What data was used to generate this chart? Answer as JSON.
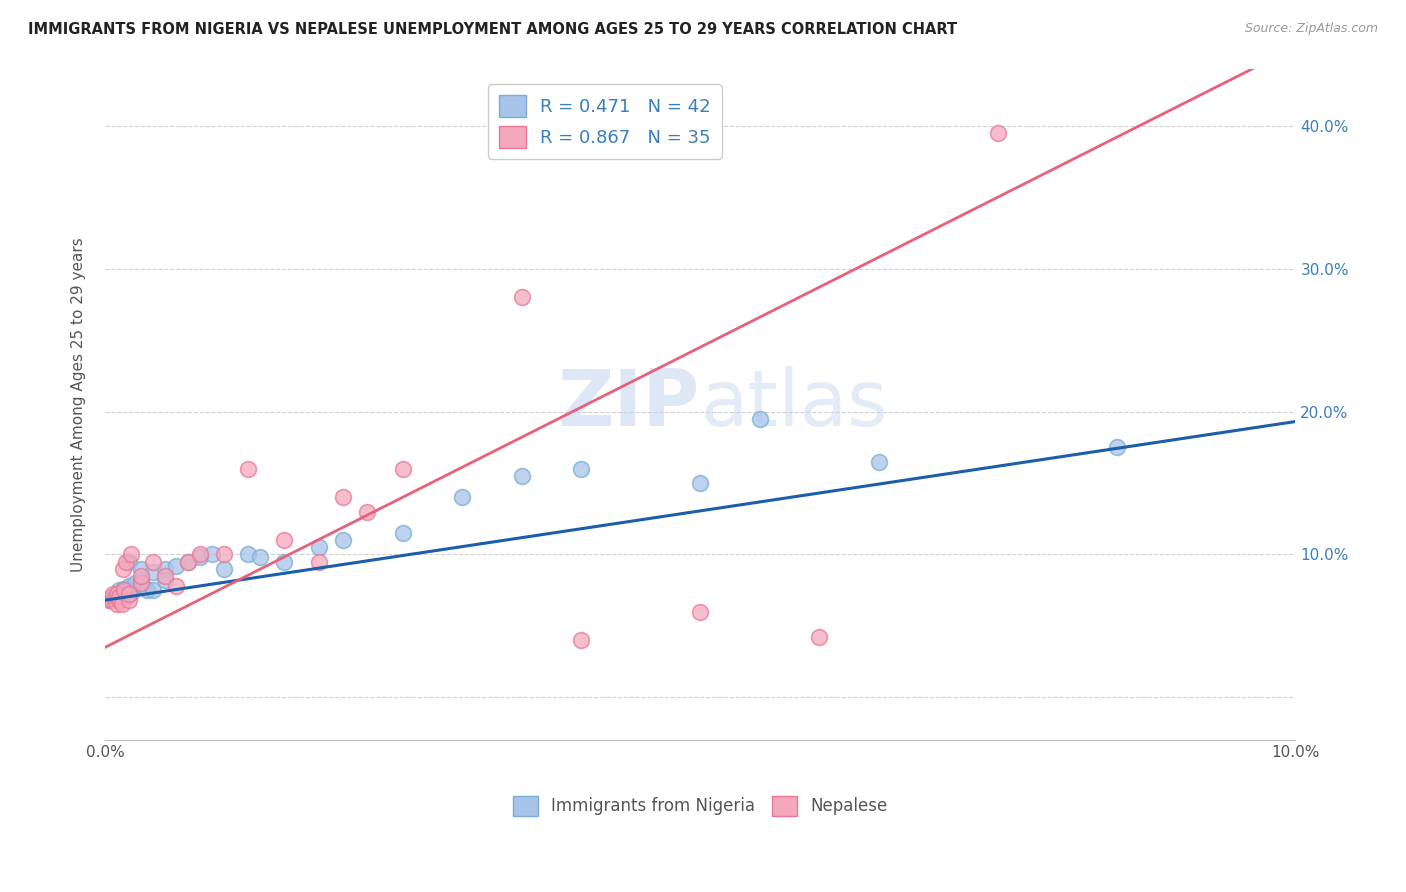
{
  "title": "IMMIGRANTS FROM NIGERIA VS NEPALESE UNEMPLOYMENT AMONG AGES 25 TO 29 YEARS CORRELATION CHART",
  "source": "Source: ZipAtlas.com",
  "ylabel": "Unemployment Among Ages 25 to 29 years",
  "xlim": [
    0.0,
    0.1
  ],
  "ylim": [
    -0.03,
    0.44
  ],
  "yticks": [
    0.0,
    0.1,
    0.2,
    0.3,
    0.4
  ],
  "xticks": [
    0.0,
    0.1
  ],
  "xtick_labels_positions": [
    0.0,
    0.1
  ],
  "xtick_labels": [
    "0.0%",
    "10.0%"
  ],
  "ytick_labels_right": [
    "",
    "10.0%",
    "20.0%",
    "30.0%",
    "40.0%"
  ],
  "legend_label1": "Immigrants from Nigeria",
  "legend_label2": "Nepalese",
  "nigeria_color": "#a8c4e8",
  "nepalese_color": "#f4a8bc",
  "nigeria_edge_color": "#7aadd4",
  "nepalese_edge_color": "#e87898",
  "nigeria_line_color": "#1a5fa8",
  "nepalese_line_color": "#e8607a",
  "nigeria_slope": 1.25,
  "nigeria_intercept": 0.068,
  "nepalese_slope": 4.2,
  "nepalese_intercept": 0.035,
  "nigeria_x": [
    0.0005,
    0.0008,
    0.001,
    0.001,
    0.0012,
    0.0012,
    0.0014,
    0.0015,
    0.0015,
    0.0016,
    0.0018,
    0.002,
    0.002,
    0.002,
    0.0022,
    0.0025,
    0.003,
    0.003,
    0.0032,
    0.0035,
    0.004,
    0.004,
    0.005,
    0.005,
    0.006,
    0.007,
    0.008,
    0.009,
    0.01,
    0.012,
    0.013,
    0.015,
    0.018,
    0.02,
    0.025,
    0.03,
    0.035,
    0.04,
    0.05,
    0.055,
    0.065,
    0.085
  ],
  "nigeria_y": [
    0.068,
    0.07,
    0.072,
    0.069,
    0.075,
    0.068,
    0.073,
    0.075,
    0.072,
    0.076,
    0.07,
    0.078,
    0.075,
    0.095,
    0.073,
    0.08,
    0.082,
    0.09,
    0.078,
    0.075,
    0.088,
    0.075,
    0.09,
    0.082,
    0.092,
    0.095,
    0.098,
    0.1,
    0.09,
    0.1,
    0.098,
    0.095,
    0.105,
    0.11,
    0.115,
    0.14,
    0.155,
    0.16,
    0.15,
    0.195,
    0.165,
    0.175
  ],
  "nepalese_x": [
    0.0003,
    0.0005,
    0.0006,
    0.0007,
    0.0008,
    0.001,
    0.001,
    0.0012,
    0.0012,
    0.0014,
    0.0015,
    0.0016,
    0.0018,
    0.002,
    0.002,
    0.0022,
    0.003,
    0.003,
    0.004,
    0.005,
    0.006,
    0.007,
    0.008,
    0.01,
    0.012,
    0.015,
    0.018,
    0.02,
    0.022,
    0.025,
    0.035,
    0.04,
    0.05,
    0.06,
    0.075
  ],
  "nepalese_y": [
    0.068,
    0.07,
    0.068,
    0.072,
    0.069,
    0.065,
    0.072,
    0.068,
    0.07,
    0.065,
    0.09,
    0.075,
    0.095,
    0.068,
    0.072,
    0.1,
    0.08,
    0.085,
    0.095,
    0.085,
    0.078,
    0.095,
    0.1,
    0.1,
    0.16,
    0.11,
    0.095,
    0.14,
    0.13,
    0.16,
    0.28,
    0.04,
    0.06,
    0.042,
    0.395
  ],
  "grid_color": "#d0d0d0",
  "watermark_color": "#c8d8f0"
}
